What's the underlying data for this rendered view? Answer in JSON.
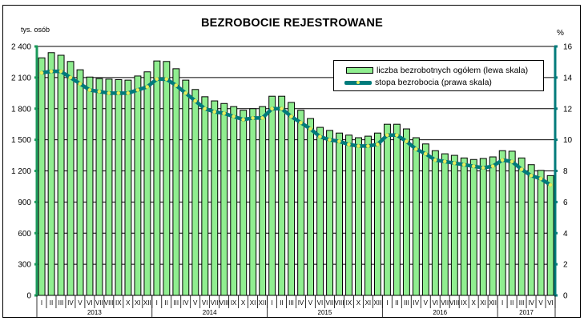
{
  "chart_data": {
    "type": "bar+line",
    "title": "BEZROBOCIE REJESTROWANE",
    "ylabel_left": "tys. osób",
    "ylabel_right": "%",
    "ylim_left": [
      0,
      2400
    ],
    "ylim_right": [
      0,
      16
    ],
    "yticks_left": [
      "0",
      "300",
      "600",
      "900",
      "1 200",
      "1 500",
      "1 800",
      "2 100",
      "2 400"
    ],
    "yticks_right": [
      "0",
      "2",
      "4",
      "6",
      "8",
      "10",
      "12",
      "14",
      "16"
    ],
    "grid": true,
    "legend_position": "top-right",
    "legend": [
      "liczba bezrobotnych ogółem (lewa skala)",
      "stopa bezrobocia (prawa skala)"
    ],
    "years": [
      {
        "label": "2013",
        "months": 12
      },
      {
        "label": "2014",
        "months": 12
      },
      {
        "label": "2015",
        "months": 12
      },
      {
        "label": "2016",
        "months": 12
      },
      {
        "label": "2017",
        "months": 6
      }
    ],
    "categories": [
      "I",
      "II",
      "III",
      "IV",
      "V",
      "VI",
      "VII",
      "VIII",
      "IX",
      "X",
      "XI",
      "XII",
      "I",
      "II",
      "III",
      "IV",
      "V",
      "VI",
      "VII",
      "VIII",
      "IX",
      "X",
      "XI",
      "XII",
      "I",
      "II",
      "III",
      "IV",
      "V",
      "VI",
      "VII",
      "VIII",
      "IX",
      "X",
      "XI",
      "XII",
      "I",
      "II",
      "III",
      "IV",
      "V",
      "VI",
      "VII",
      "VIII",
      "IX",
      "X",
      "XI",
      "XII",
      "I",
      "II",
      "III",
      "IV",
      "V",
      "VI"
    ],
    "series": [
      {
        "name": "liczba bezrobotnych ogółem (lewa skala)",
        "type": "bar",
        "axis": "left",
        "color": "#90ee90",
        "values": [
          2290,
          2340,
          2315,
          2255,
          2175,
          2105,
          2090,
          2085,
          2080,
          2075,
          2115,
          2155,
          2260,
          2255,
          2185,
          2075,
          1985,
          1915,
          1875,
          1850,
          1820,
          1785,
          1800,
          1820,
          1920,
          1920,
          1860,
          1785,
          1705,
          1620,
          1590,
          1565,
          1545,
          1520,
          1535,
          1565,
          1650,
          1650,
          1605,
          1520,
          1460,
          1395,
          1365,
          1350,
          1325,
          1310,
          1320,
          1335,
          1395,
          1390,
          1325,
          1260,
          1205,
          1155
        ]
      },
      {
        "name": "stopa bezrobocia (prawa skala)",
        "type": "line",
        "axis": "right",
        "color": "#007b7b",
        "marker_color": "#e8f060",
        "values": [
          14.3,
          14.4,
          14.4,
          14.0,
          13.6,
          13.2,
          13.1,
          13.0,
          13.0,
          13.0,
          13.2,
          13.4,
          13.9,
          13.9,
          13.5,
          13.0,
          12.5,
          12.0,
          11.8,
          11.7,
          11.5,
          11.3,
          11.4,
          11.4,
          12.0,
          12.0,
          11.5,
          11.1,
          10.7,
          10.2,
          10.0,
          9.9,
          9.7,
          9.6,
          9.6,
          9.7,
          10.3,
          10.3,
          9.9,
          9.4,
          9.1,
          8.7,
          8.6,
          8.5,
          8.4,
          8.3,
          8.2,
          8.3,
          8.7,
          8.6,
          8.1,
          7.7,
          7.5,
          7.1
        ]
      }
    ]
  }
}
